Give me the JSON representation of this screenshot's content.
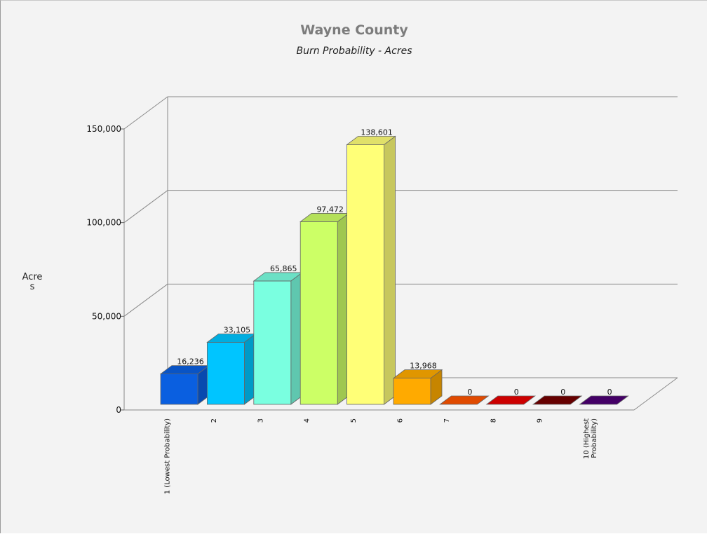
{
  "chart_data": {
    "type": "bar",
    "title": "Wayne County",
    "subtitle": "Burn Probability - Acres",
    "ylabel": "Acres",
    "xlabel": "",
    "ylim": [
      0,
      150000
    ],
    "yticks": [
      "0",
      "50,000",
      "100,000",
      "150,000"
    ],
    "grid": true,
    "categories": [
      "1 (Lowest Probability)",
      "2",
      "3",
      "4",
      "5",
      "6",
      "7",
      "8",
      "9",
      "10 (Highest Probability)"
    ],
    "values": [
      16236,
      33105,
      65865,
      97472,
      138601,
      13968,
      0,
      0,
      0,
      0
    ],
    "data_labels": [
      "16,236",
      "33,105",
      "65,865",
      "97,472",
      "138,601",
      "13,968",
      "0",
      "0",
      "0",
      "0"
    ],
    "colors": [
      "#0a5fe0",
      "#00c5ff",
      "#7affe0",
      "#ccff66",
      "#ffff77",
      "#ffaa00",
      "#e04a00",
      "#cc0000",
      "#660000",
      "#440066"
    ]
  }
}
